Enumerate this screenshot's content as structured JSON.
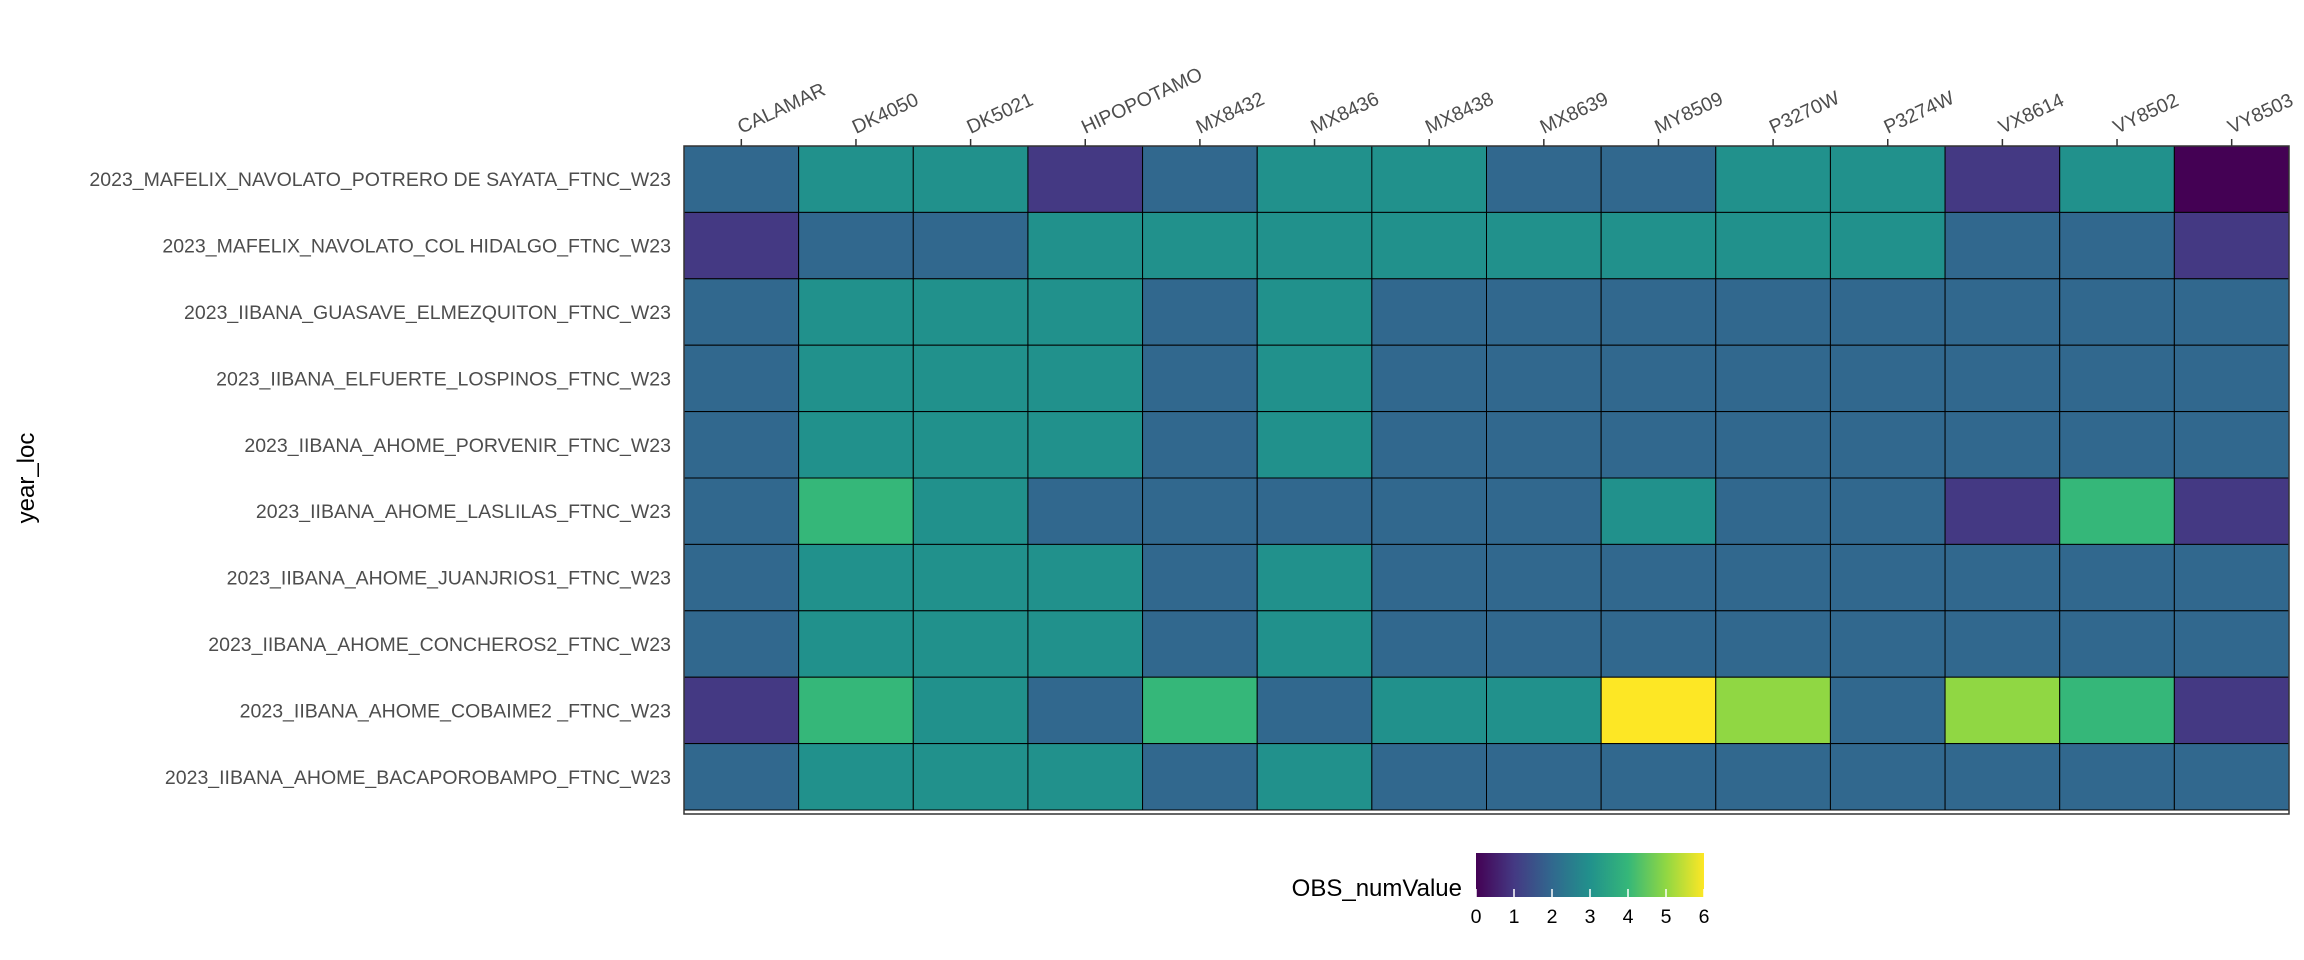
{
  "chart_data": {
    "type": "heatmap",
    "title": "",
    "xlabel": "",
    "ylabel": "year_loc",
    "x_axis_position": "top",
    "legend": {
      "title": "OBS_numValue",
      "position": "bottom",
      "ticks": [
        0,
        1,
        2,
        3,
        4,
        5,
        6
      ],
      "tick_labels": [
        "0",
        "1",
        "2",
        "3",
        "4",
        "5",
        "6"
      ],
      "range": [
        0,
        6
      ],
      "colormap": "viridis"
    },
    "grid": false,
    "columns": [
      "CALAMAR",
      "DK4050",
      "DK5021",
      "HIPOPOTAMO",
      "MX8432",
      "MX8436",
      "MX8438",
      "MX8639",
      "MY8509",
      "P3270W",
      "P3274W",
      "VX8614",
      "VY8502",
      "VY8503"
    ],
    "rows": [
      "2023_MAFELIX_NAVOLATO_POTRERO DE SAYATA_FTNC_W23",
      "2023_MAFELIX_NAVOLATO_COL HIDALGO_FTNC_W23",
      "2023_IIBANA_GUASAVE_ELMEZQUITON_FTNC_W23",
      "2023_IIBANA_ELFUERTE_LOSPINOS_FTNC_W23",
      "2023_IIBANA_AHOME_PORVENIR_FTNC_W23",
      "2023_IIBANA_AHOME_LASLILAS_FTNC_W23",
      "2023_IIBANA_AHOME_JUANJRIOS1_FTNC_W23",
      "2023_IIBANA_AHOME_CONCHEROS2_FTNC_W23",
      "2023_IIBANA_AHOME_COBAIME2 _FTNC_W23",
      "2023_IIBANA_AHOME_BACAPOROBAMPO_FTNC_W23"
    ],
    "values": [
      [
        2,
        3,
        3,
        1,
        2,
        3,
        3,
        2,
        2,
        3,
        3,
        1,
        3,
        0
      ],
      [
        1,
        2,
        2,
        3,
        3,
        3,
        3,
        3,
        3,
        3,
        3,
        2,
        2,
        1
      ],
      [
        2,
        3,
        3,
        3,
        2,
        3,
        2,
        2,
        2,
        2,
        2,
        2,
        2,
        2
      ],
      [
        2,
        3,
        3,
        3,
        2,
        3,
        2,
        2,
        2,
        2,
        2,
        2,
        2,
        2
      ],
      [
        2,
        3,
        3,
        3,
        2,
        3,
        2,
        2,
        2,
        2,
        2,
        2,
        2,
        2
      ],
      [
        2,
        4,
        3,
        2,
        2,
        2,
        2,
        2,
        3,
        2,
        2,
        1,
        4,
        1
      ],
      [
        2,
        3,
        3,
        3,
        2,
        3,
        2,
        2,
        2,
        2,
        2,
        2,
        2,
        2
      ],
      [
        2,
        3,
        3,
        3,
        2,
        3,
        2,
        2,
        2,
        2,
        2,
        2,
        2,
        2
      ],
      [
        1,
        4,
        3,
        2,
        4,
        2,
        3,
        3,
        6,
        5,
        2,
        5,
        4,
        1
      ],
      [
        2,
        3,
        3,
        3,
        2,
        3,
        2,
        2,
        2,
        2,
        2,
        2,
        2,
        2
      ]
    ]
  }
}
